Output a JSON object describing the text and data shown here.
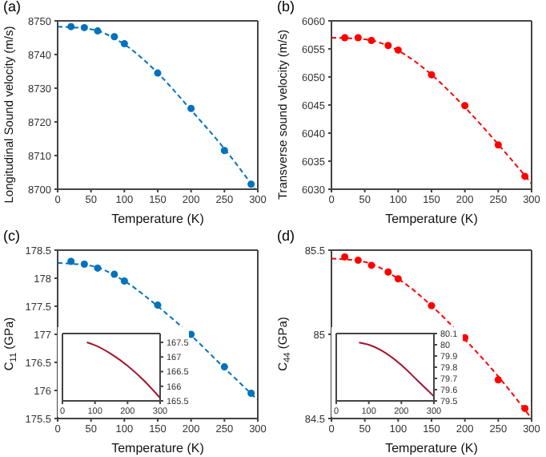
{
  "chart_data": [
    {
      "type": "scatter",
      "title": "(a)",
      "xlabel": "Temperature (K)",
      "ylabel": "Longitudinal Sound velocity (m/s)",
      "xlim": [
        0,
        300
      ],
      "xticks": [
        0,
        50,
        100,
        150,
        200,
        250,
        300
      ],
      "ylim": [
        8700,
        8750
      ],
      "yticks": [
        8700,
        8710,
        8720,
        8730,
        8740,
        8750
      ],
      "series": [
        {
          "color": "#0072bd",
          "marker": "circle",
          "x": [
            20,
            40,
            60,
            85,
            100,
            150,
            200,
            250,
            290
          ],
          "values": [
            8748.3,
            8748,
            8747,
            8745.3,
            8743.2,
            8734.5,
            8724,
            8711.5,
            8701.5
          ]
        },
        {
          "type": "line",
          "color": "#0072bd",
          "line_style": "dashed",
          "x": [
            0,
            50,
            100,
            150,
            200,
            250,
            296
          ],
          "values": [
            8748.3,
            8747.5,
            8743,
            8734.5,
            8723.5,
            8712,
            8700
          ]
        }
      ]
    },
    {
      "type": "scatter",
      "title": "(b)",
      "xlabel": "Temperature (K)",
      "ylabel": "Transverse sound velocity (m/s)",
      "xlim": [
        0,
        300
      ],
      "xticks": [
        0,
        50,
        100,
        150,
        200,
        250,
        300
      ],
      "ylim": [
        6030,
        6060
      ],
      "yticks": [
        6030,
        6035,
        6040,
        6045,
        6050,
        6055,
        6060
      ],
      "series": [
        {
          "color": "#ff0000",
          "marker": "circle",
          "x": [
            20,
            40,
            60,
            85,
            100,
            150,
            200,
            250,
            290
          ],
          "values": [
            6057,
            6057,
            6056.5,
            6055.6,
            6054.8,
            6050.4,
            6044.9,
            6037.9,
            6032.3
          ]
        },
        {
          "type": "line",
          "color": "#ff0000",
          "line_style": "dashed",
          "x": [
            0,
            50,
            100,
            150,
            200,
            250,
            300
          ],
          "values": [
            6057,
            6056.7,
            6054.7,
            6050.4,
            6044.6,
            6038,
            6031
          ]
        }
      ]
    },
    {
      "type": "scatter",
      "title": "(c)",
      "xlabel": "Temperature (K)",
      "ylabel": "C$_{11}$ (GPa)",
      "xlim": [
        0,
        300
      ],
      "xticks": [
        0,
        50,
        100,
        150,
        200,
        250,
        300
      ],
      "ylim": [
        175.5,
        178.5
      ],
      "yticks": [
        175.5,
        176,
        176.5,
        177,
        177.5,
        178,
        178.5
      ],
      "series": [
        {
          "color": "#0072bd",
          "marker": "circle",
          "x": [
            20,
            40,
            60,
            85,
            100,
            150,
            200,
            250,
            290
          ],
          "values": [
            178.3,
            178.25,
            178.18,
            178.07,
            177.95,
            177.52,
            177,
            176.42,
            175.95
          ]
        },
        {
          "type": "line",
          "color": "#0072bd",
          "line_style": "dashed",
          "x": [
            0,
            50,
            100,
            150,
            200,
            250,
            300
          ],
          "values": [
            178.27,
            178.22,
            177.95,
            177.5,
            176.98,
            176.4,
            175.83
          ]
        }
      ]
    },
    {
      "type": "scatter",
      "title": "(d)",
      "xlabel": "Temperature (K)",
      "ylabel": "C$_{44}$ (GPa)",
      "xlim": [
        0,
        300
      ],
      "xticks": [
        0,
        50,
        100,
        150,
        200,
        250,
        300
      ],
      "ylim": [
        84.5,
        85.5
      ],
      "yticks": [
        84.5,
        85,
        85.5
      ],
      "series": [
        {
          "color": "#ff0000",
          "marker": "circle",
          "x": [
            20,
            40,
            60,
            85,
            100,
            150,
            200,
            250,
            290
          ],
          "values": [
            85.46,
            85.44,
            85.41,
            85.37,
            85.33,
            85.17,
            84.98,
            84.73,
            84.56
          ]
        },
        {
          "type": "line",
          "color": "#ff0000",
          "line_style": "dashed",
          "x": [
            0,
            50,
            100,
            150,
            200,
            250,
            300
          ],
          "values": [
            85.45,
            85.43,
            85.33,
            85.17,
            84.97,
            84.75,
            84.5
          ]
        }
      ]
    },
    {
      "type": "line",
      "xlim": [
        0,
        300
      ],
      "xticks": [
        0,
        100,
        200,
        300
      ],
      "y2lim": [
        165.5,
        167.8
      ],
      "y2ticks": [
        165.5,
        166,
        166.5,
        167,
        167.5
      ],
      "series": [
        {
          "color": "#a2142f",
          "axis": "y2",
          "x": [
            75,
            100,
            150,
            200,
            250,
            300
          ],
          "values": [
            167.5,
            167.4,
            167.1,
            166.7,
            166.2,
            165.6
          ]
        }
      ]
    },
    {
      "type": "line",
      "xlim": [
        0,
        300
      ],
      "xticks": [
        0,
        100,
        200,
        300
      ],
      "y2lim": [
        79.5,
        80.1
      ],
      "y2ticks": [
        79.5,
        79.6,
        79.7,
        79.8,
        79.9,
        80,
        80.1
      ],
      "series": [
        {
          "color": "#a2142f",
          "axis": "y2",
          "x": [
            70,
            100,
            150,
            200,
            250,
            300
          ],
          "values": [
            80.02,
            80,
            79.93,
            79.82,
            79.68,
            79.54
          ]
        }
      ]
    }
  ]
}
